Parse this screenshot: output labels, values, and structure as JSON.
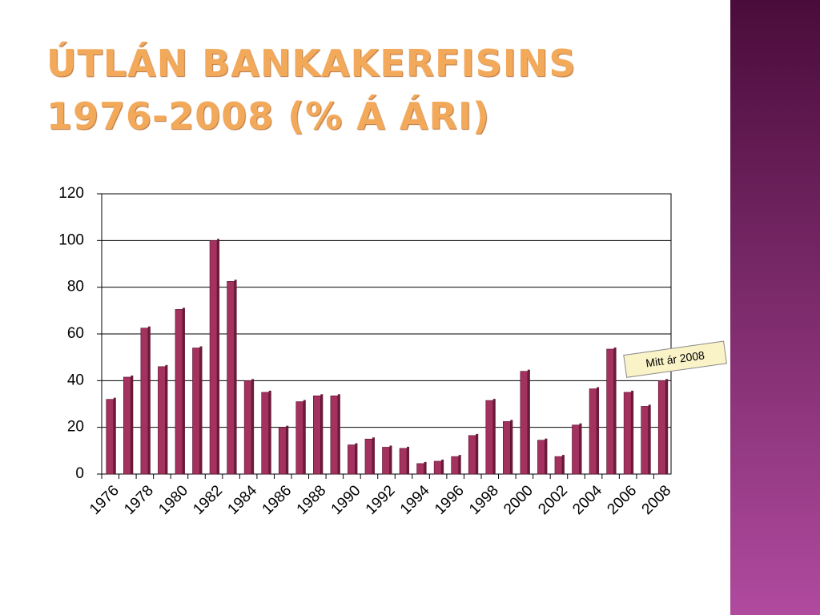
{
  "chart_data": {
    "type": "bar",
    "title": "ÚTLÁN BANKAKERFISINS 1976-2008 (% Á ÁRI)",
    "annotation": "Mitt ár 2008",
    "categories": [
      "1976",
      null,
      "1978",
      null,
      "1980",
      null,
      "1982",
      null,
      "1984",
      null,
      "1986",
      null,
      "1988",
      null,
      "1990",
      null,
      "1992",
      null,
      "1994",
      null,
      "1996",
      null,
      "1998",
      null,
      "2000",
      null,
      "2002",
      null,
      "2004",
      null,
      "2006",
      null,
      "2008"
    ],
    "values": [
      32,
      41.5,
      62.5,
      46,
      70.5,
      54,
      100,
      82.5,
      40,
      35,
      20,
      31,
      33.5,
      33.5,
      12.5,
      15,
      11.5,
      11,
      4.5,
      5.5,
      7.5,
      16.5,
      31.5,
      22.5,
      44,
      14.5,
      7.5,
      21,
      36.5,
      53.5,
      35,
      29,
      40
    ],
    "color": "#a3325e",
    "ylim": [
      0,
      120
    ],
    "yticks": [
      0,
      20,
      40,
      60,
      80,
      100,
      120
    ],
    "grid": true
  }
}
